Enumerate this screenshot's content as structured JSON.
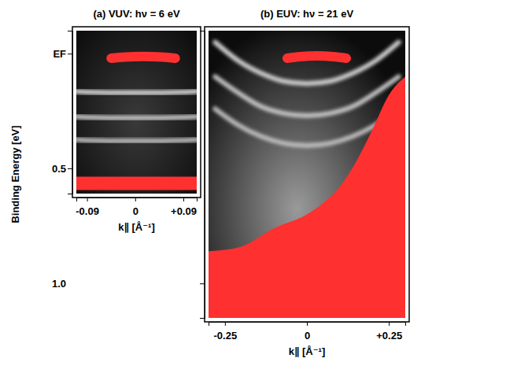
{
  "chart_data": [
    {
      "type": "line",
      "title": "(a) VUV: hν = 6 eV",
      "xlabel": "k∥ [Å⁻¹]",
      "ylabel": "Binding Energy [eV]",
      "xlim": [
        -0.11,
        0.115
      ],
      "xticks": [
        {
          "value": -0.09,
          "label": "-0.09"
        },
        0,
        {
          "value": 0.09,
          "label": "+0.09"
        }
      ],
      "ylim": [
        -0.1,
        0.61
      ],
      "yticks": [
        {
          "value": 0,
          "label": "EF"
        },
        0.5
      ],
      "series": [
        {
          "color": "#ff3030",
          "x": [
            -0.045,
            -0.02,
            0.015,
            0.05,
            0.075
          ],
          "values": [
            0.02,
            0.015,
            0.012,
            0.015,
            0.02
          ]
        },
        {
          "color": "#d4d4d4",
          "x": [
            -0.11,
            -0.05,
            0,
            0.05,
            0.115
          ],
          "values": [
            0.165,
            0.17,
            0.17,
            0.17,
            0.165
          ]
        },
        {
          "color": "#c4c4c4",
          "x": [
            -0.11,
            -0.05,
            0,
            0.05,
            0.115
          ],
          "values": [
            0.275,
            0.28,
            0.28,
            0.28,
            0.275
          ]
        },
        {
          "color": "#bcbcbc",
          "x": [
            -0.11,
            -0.05,
            0,
            0.05,
            0.115
          ],
          "values": [
            0.375,
            0.38,
            0.38,
            0.38,
            0.375
          ]
        },
        {
          "color": "#ff3030",
          "x": [
            -0.11,
            0,
            0.115
          ],
          "values": [
            0.565,
            0.565,
            0.565
          ]
        }
      ]
    },
    {
      "type": "line",
      "title": "(b) EUV: hν = 21 eV",
      "xlabel": "k∥ [Å⁻¹]",
      "xlim": [
        -0.3,
        0.3
      ],
      "xticks": [
        {
          "value": -0.25,
          "label": "-0.25"
        },
        0,
        {
          "value": 0.25,
          "label": "+0.25"
        }
      ],
      "ylim": [
        -0.1,
        1.15
      ],
      "yticks": [
        {
          "value": 1,
          "label": "1.0"
        }
      ],
      "series": [
        {
          "color": "#ff3030",
          "x": [
            -0.06,
            -0.02,
            0.03,
            0.08,
            0.12
          ],
          "values": [
            0.02,
            0.013,
            0.01,
            0.013,
            0.02
          ]
        },
        {
          "color": "#cfcfcf",
          "x": [
            -0.28,
            -0.21,
            -0.14,
            -0.07,
            0,
            0.07,
            0.14,
            0.21,
            0.28
          ],
          "values": [
            -0.05,
            0.03,
            0.085,
            0.12,
            0.13,
            0.12,
            0.085,
            0.03,
            -0.05
          ]
        },
        {
          "color": "#c4c4c4",
          "x": [
            -0.28,
            -0.21,
            -0.14,
            -0.07,
            0,
            0.07,
            0.14,
            0.21,
            0.28
          ],
          "values": [
            0.1,
            0.17,
            0.23,
            0.26,
            0.27,
            0.26,
            0.23,
            0.17,
            0.1
          ]
        },
        {
          "color": "#bdbdbd",
          "x": [
            -0.28,
            -0.21,
            -0.14,
            -0.07,
            0,
            0.07,
            0.14,
            0.21,
            0.28
          ],
          "values": [
            0.24,
            0.31,
            0.36,
            0.39,
            0.4,
            0.39,
            0.36,
            0.31,
            0.24
          ]
        },
        {
          "type": "area",
          "color": "#ff3030",
          "x": [
            -0.3,
            -0.2,
            -0.1,
            0,
            0.05,
            0.1,
            0.15,
            0.2,
            0.25,
            0.3
          ],
          "values": [
            0.86,
            0.84,
            0.76,
            0.7,
            0.65,
            0.58,
            0.47,
            0.33,
            0.18,
            0.1
          ]
        }
      ]
    }
  ]
}
